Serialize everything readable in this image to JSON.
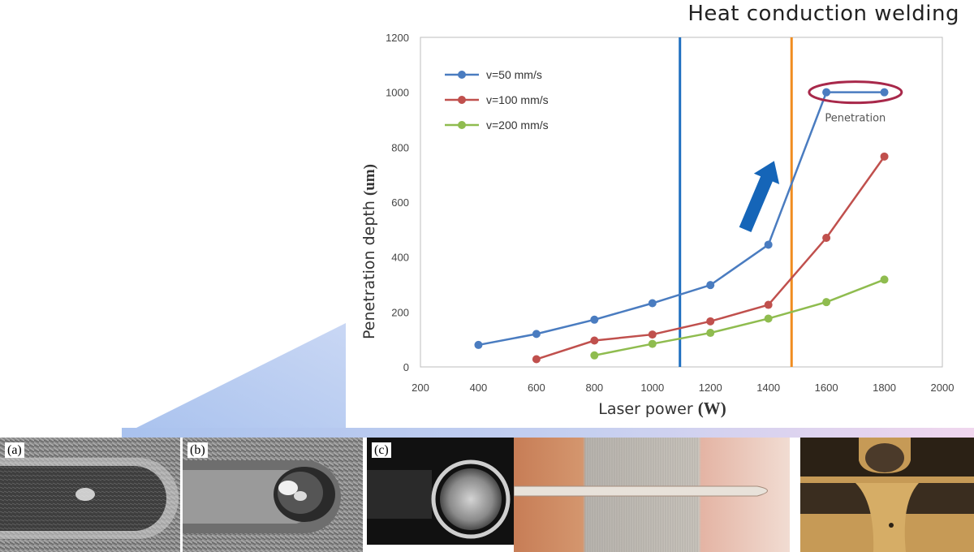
{
  "title": "Heat conduction welding",
  "chart_data": {
    "type": "line",
    "xlabel": "Laser power",
    "xlabel_unit": "(W)",
    "ylabel": "Penetration depth",
    "ylabel_unit": "(um)",
    "xlim": [
      200,
      2000
    ],
    "ylim": [
      0,
      1200
    ],
    "xticks": [
      200,
      400,
      600,
      800,
      1000,
      1200,
      1400,
      1600,
      1800,
      2000
    ],
    "yticks": [
      0,
      200,
      400,
      600,
      800,
      1000,
      1200
    ],
    "grid": false,
    "legend_position": "top-left",
    "series": [
      {
        "name": "v=50 mm/s",
        "color": "#4a7cc0",
        "x": [
          400,
          600,
          800,
          1000,
          1200,
          1400,
          1600,
          1800
        ],
        "y": [
          80,
          120,
          172,
          232,
          298,
          445,
          1000,
          1000
        ]
      },
      {
        "name": "v=100 mm/s",
        "color": "#c0504d",
        "x": [
          600,
          800,
          1000,
          1200,
          1400,
          1600,
          1800
        ],
        "y": [
          28,
          96,
          118,
          166,
          226,
          470,
          766
        ]
      },
      {
        "name": "v=200 mm/s",
        "color": "#8fbc4f",
        "x": [
          800,
          1000,
          1200,
          1400,
          1600,
          1800
        ],
        "y": [
          42,
          84,
          124,
          176,
          236,
          318
        ]
      }
    ],
    "vertical_lines": [
      {
        "x": 1095,
        "color": "#1f6fc0"
      },
      {
        "x": 1480,
        "color": "#f08c20"
      }
    ],
    "annotations": [
      {
        "text": "Penetration",
        "x": 1700,
        "y": 1000,
        "marker": "ellipse",
        "color": "#a8284a"
      }
    ],
    "arrow": {
      "from": [
        1320,
        500
      ],
      "to": [
        1420,
        750
      ],
      "color": "#1565b8"
    }
  },
  "photos": [
    {
      "label": "(a)",
      "type": "grooved-surface"
    },
    {
      "label": "(b)",
      "type": "keyhole-surface"
    },
    {
      "label": "(c)",
      "type": "dark-round-weld"
    },
    {
      "type": "copper-aluminum-seam"
    },
    {
      "type": "cross-section"
    }
  ]
}
